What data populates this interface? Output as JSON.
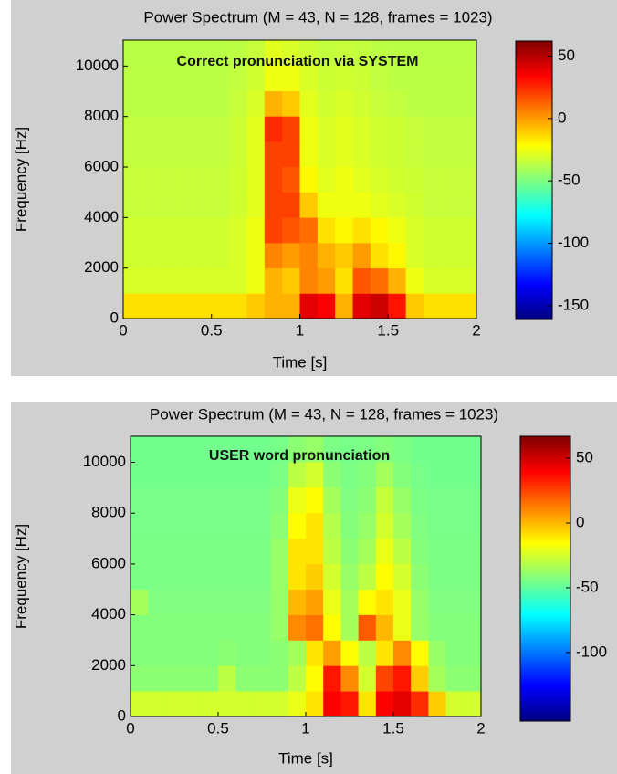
{
  "chart_data": [
    {
      "type": "heatmap",
      "title": "Power Spectrum (M = 43, N = 128, frames = 1023)",
      "annotation": "Correct pronunciation via SYSTEM",
      "xlabel": "Time [s]",
      "ylabel": "Frequency [Hz]",
      "xlim": [
        0,
        2
      ],
      "xticks": [
        0,
        0.5,
        1,
        1.5,
        2
      ],
      "ylim": [
        0,
        11025
      ],
      "yticks": [
        0,
        2000,
        4000,
        6000,
        8000,
        10000
      ],
      "colormap": "jet",
      "clim": [
        -161,
        62
      ],
      "cticks": [
        -150,
        -100,
        -50,
        0,
        50
      ],
      "z": [
        [
          -15,
          -15,
          -15,
          -15,
          -15,
          -15,
          -15,
          -10,
          -5,
          -5,
          40,
          35,
          -5,
          40,
          45,
          30,
          -10,
          -15,
          -15,
          -15
        ],
        [
          -30,
          -30,
          -30,
          -30,
          -30,
          -30,
          -30,
          -25,
          -5,
          -10,
          5,
          0,
          -15,
          15,
          10,
          -5,
          -25,
          -30,
          -30,
          -30
        ],
        [
          -32,
          -32,
          -32,
          -32,
          -32,
          -32,
          -30,
          -25,
          5,
          0,
          5,
          -5,
          -10,
          0,
          -15,
          -20,
          -30,
          -32,
          -32,
          -32
        ],
        [
          -32,
          -32,
          -32,
          -32,
          -32,
          -32,
          -30,
          -25,
          20,
          15,
          10,
          -15,
          -20,
          -15,
          -20,
          -25,
          -30,
          -32,
          -32,
          -32
        ],
        [
          -34,
          -34,
          -34,
          -34,
          -34,
          -34,
          -32,
          -28,
          20,
          20,
          -10,
          -25,
          -25,
          -25,
          -28,
          -30,
          -32,
          -34,
          -34,
          -34
        ],
        [
          -34,
          -34,
          -34,
          -34,
          -34,
          -34,
          -32,
          -28,
          20,
          15,
          -20,
          -28,
          -25,
          -28,
          -30,
          -32,
          -33,
          -34,
          -34,
          -34
        ],
        [
          -35,
          -35,
          -35,
          -35,
          -35,
          -35,
          -33,
          -28,
          20,
          20,
          -25,
          -30,
          -28,
          -30,
          -32,
          -33,
          -34,
          -35,
          -35,
          -35
        ],
        [
          -35,
          -35,
          -35,
          -35,
          -35,
          -35,
          -33,
          -28,
          25,
          20,
          -25,
          -30,
          -28,
          -30,
          -32,
          -33,
          -34,
          -35,
          -35,
          -35
        ],
        [
          -36,
          -36,
          -36,
          -36,
          -36,
          -36,
          -34,
          -30,
          -5,
          -10,
          -28,
          -32,
          -30,
          -32,
          -34,
          -35,
          -36,
          -36,
          -36,
          -36
        ],
        [
          -36,
          -36,
          -36,
          -36,
          -36,
          -36,
          -35,
          -32,
          -25,
          -25,
          -30,
          -33,
          -32,
          -33,
          -35,
          -36,
          -36,
          -36,
          -36,
          -36
        ],
        [
          -37,
          -37,
          -37,
          -37,
          -37,
          -37,
          -36,
          -34,
          -28,
          -30,
          -33,
          -35,
          -34,
          -35,
          -36,
          -37,
          -37,
          -37,
          -37,
          -37
        ]
      ]
    },
    {
      "type": "heatmap",
      "title": "Power Spectrum (M = 43, N = 128, frames = 1023)",
      "annotation": "USER word pronunciation",
      "xlabel": "Time [s]",
      "ylabel": "Frequency [Hz]",
      "xlim": [
        0,
        2
      ],
      "xticks": [
        0,
        0.5,
        1,
        1.5,
        2
      ],
      "ylim": [
        0,
        11025
      ],
      "yticks": [
        0,
        2000,
        4000,
        6000,
        8000,
        10000
      ],
      "colormap": "jet",
      "clim": [
        -153,
        67
      ],
      "cticks": [
        -100,
        -50,
        0,
        50
      ],
      "z": [
        [
          -25,
          -25,
          -25,
          -25,
          -25,
          -25,
          -25,
          -25,
          -25,
          -20,
          -10,
          40,
          35,
          -10,
          40,
          45,
          30,
          -5,
          -25,
          -25
        ],
        [
          -40,
          -40,
          -40,
          -40,
          -40,
          -30,
          -40,
          -40,
          -40,
          -30,
          -15,
          35,
          10,
          -25,
          25,
          35,
          -5,
          -35,
          -40,
          -40
        ],
        [
          -42,
          -42,
          -42,
          -42,
          -42,
          -40,
          -42,
          -42,
          -40,
          -35,
          -10,
          5,
          -15,
          -30,
          -10,
          10,
          -15,
          -38,
          -42,
          -42
        ],
        [
          -42,
          -42,
          -42,
          -42,
          -42,
          -42,
          -42,
          -42,
          -38,
          10,
          15,
          -15,
          -35,
          20,
          0,
          -20,
          -38,
          -42,
          -42,
          -42
        ],
        [
          -35,
          -43,
          -43,
          -43,
          -43,
          -43,
          -43,
          -43,
          -38,
          0,
          5,
          -20,
          -35,
          -15,
          -10,
          -20,
          -38,
          -43,
          -43,
          -43
        ],
        [
          -44,
          -44,
          -44,
          -44,
          -44,
          -44,
          -44,
          -44,
          -38,
          -10,
          -5,
          -25,
          -38,
          -30,
          -15,
          -25,
          -40,
          -44,
          -44,
          -44
        ],
        [
          -44,
          -44,
          -44,
          -44,
          -44,
          -44,
          -44,
          -44,
          -38,
          -10,
          -10,
          -30,
          -40,
          -35,
          -20,
          -30,
          -42,
          -44,
          -44,
          -44
        ],
        [
          -45,
          -45,
          -45,
          -45,
          -45,
          -45,
          -45,
          -45,
          -40,
          -15,
          -10,
          -32,
          -42,
          -38,
          -25,
          -35,
          -43,
          -45,
          -45,
          -45
        ],
        [
          -45,
          -45,
          -45,
          -45,
          -45,
          -45,
          -45,
          -45,
          -42,
          -20,
          -15,
          -35,
          -43,
          -40,
          -28,
          -38,
          -44,
          -45,
          -45,
          -45
        ],
        [
          -46,
          -46,
          -46,
          -46,
          -46,
          -46,
          -46,
          -46,
          -44,
          -30,
          -25,
          -40,
          -44,
          -42,
          -35,
          -42,
          -45,
          -46,
          -46,
          -46
        ],
        [
          -46,
          -46,
          -46,
          -46,
          -46,
          -46,
          -46,
          -46,
          -45,
          -40,
          -38,
          -44,
          -45,
          -44,
          -42,
          -44,
          -46,
          -46,
          -46,
          -46
        ]
      ]
    }
  ]
}
